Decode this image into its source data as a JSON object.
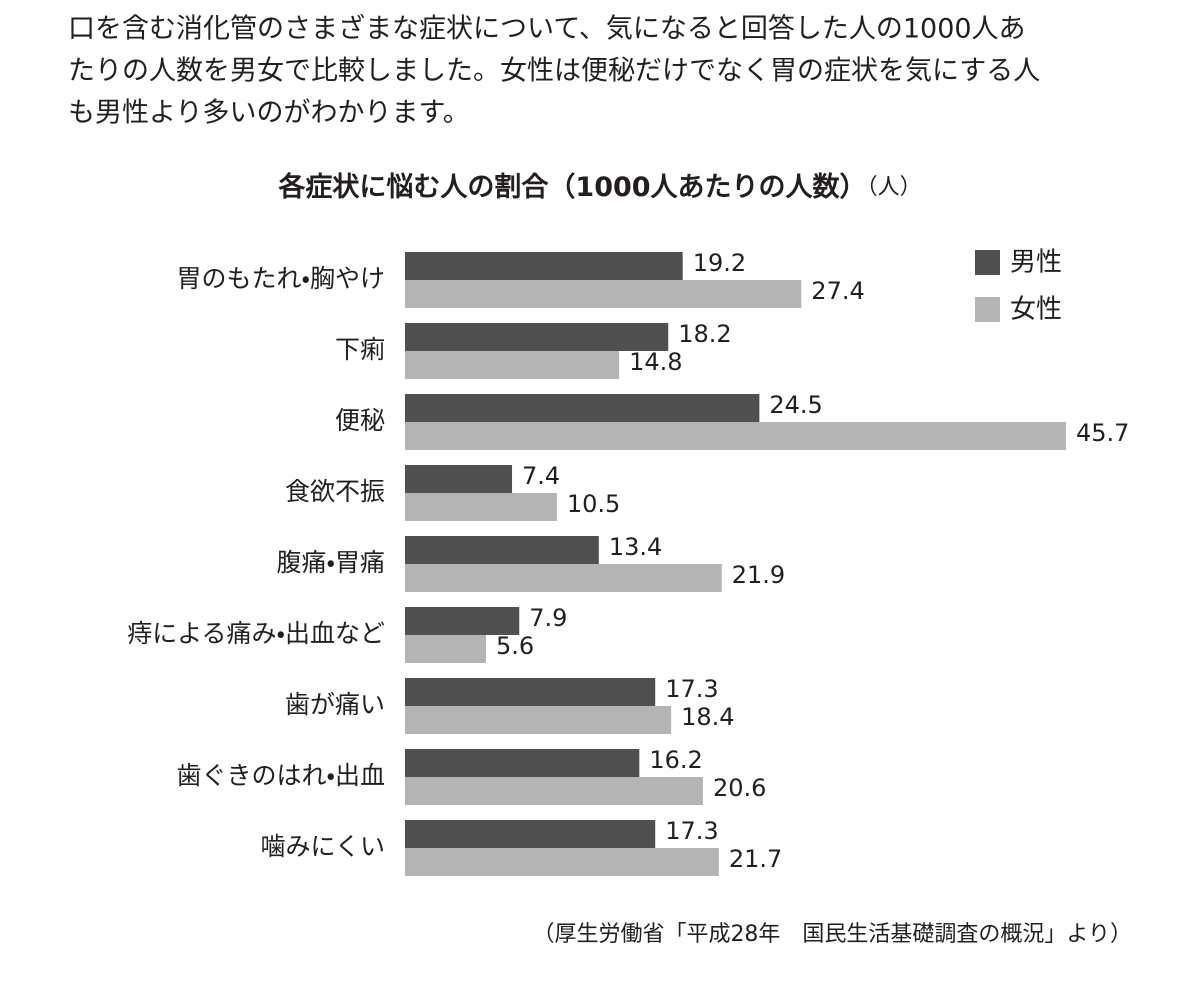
{
  "intro": [
    "口を含む消化管のさまざまな症状について、気になると回答した人の1000人あ",
    "たりの人数を男女で比較しました。女性は便秘だけでなく胃の症状を気にする人",
    "も男性より多いのがわかります。"
  ],
  "chart_data": {
    "type": "hbar",
    "title": "各症状に悩む人の割合（1000人あたりの人数）",
    "unit": "（人）",
    "categories": [
      "胃のもたれ・胸やけ",
      "下痢",
      "便秘",
      "食欲不振",
      "腹痛・胃痛",
      "痔による痛み・出血など",
      "歯が痛い",
      "歯ぐきのはれ・出血",
      "噛みにくい"
    ],
    "series": [
      {
        "name": "男性",
        "color": "#505050",
        "values": [
          19.2,
          18.2,
          24.5,
          7.4,
          13.4,
          7.9,
          17.3,
          16.2,
          17.3
        ]
      },
      {
        "name": "女性",
        "color": "#b4b4b4",
        "values": [
          27.4,
          14.8,
          45.7,
          10.5,
          21.9,
          5.6,
          18.4,
          20.6,
          21.7
        ]
      }
    ],
    "legend": "top-right",
    "source": "（厚生労働省「平成28年　国民生活基礎調査の概況」より）"
  }
}
